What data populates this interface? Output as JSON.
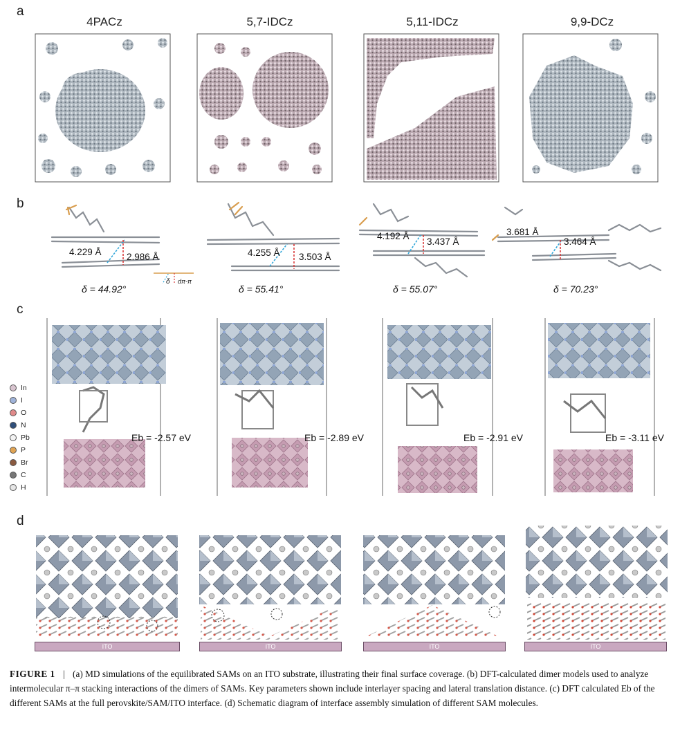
{
  "panels": {
    "a": {
      "letter": "a",
      "titles": [
        "4PACz",
        "5,7-IDCz",
        "5,11-IDCz",
        "9,9-DCz"
      ]
    },
    "b": {
      "letter": "b",
      "dimers": [
        {
          "lateral": "4.229 Å",
          "spacing": "2.986 Å",
          "delta": "δ = 44.92°"
        },
        {
          "lateral": "4.255 Å",
          "spacing": "3.503 Å",
          "delta": "δ = 55.41°"
        },
        {
          "lateral": "4.192 Å",
          "spacing": "3.437 Å",
          "delta": "δ = 55.07°"
        },
        {
          "lateral": "3.681 Å",
          "spacing": "3.464 Å",
          "delta": "δ = 70.23°"
        }
      ],
      "inset": {
        "delta": "δ",
        "d": "dπ-π"
      }
    },
    "c": {
      "letter": "c",
      "legend": [
        "In",
        "I",
        "O",
        "N",
        "Pb",
        "P",
        "Br",
        "C",
        "H"
      ],
      "legend_colors": [
        "#d8c4cf",
        "#9fb3d9",
        "#e08a8a",
        "#2f4f7a",
        "#f2f2f2",
        "#e0a454",
        "#8a5a40",
        "#777777",
        "#e6e6e6"
      ],
      "eb": [
        "Eb = -2.57 eV",
        "Eb = -2.89 eV",
        "Eb = -2.91 eV",
        "Eb = -3.11 eV"
      ]
    },
    "d": {
      "letter": "d",
      "substrate_label": "ITO"
    }
  },
  "caption": {
    "label": "FIGURE 1",
    "separator": "|",
    "text": "(a) MD simulations of the equilibrated SAMs on an ITO substrate, illustrating their final surface coverage. (b) DFT-calculated dimer models used to analyze intermolecular π–π stacking interactions of the dimers of SAMs. Key parameters shown include interlayer spacing and lateral translation distance. (c) DFT calculated Eb of the different SAMs at the full perovskite/SAM/ITO interface. (d) Schematic diagram of interface assembly simulation of different SAM molecules."
  }
}
